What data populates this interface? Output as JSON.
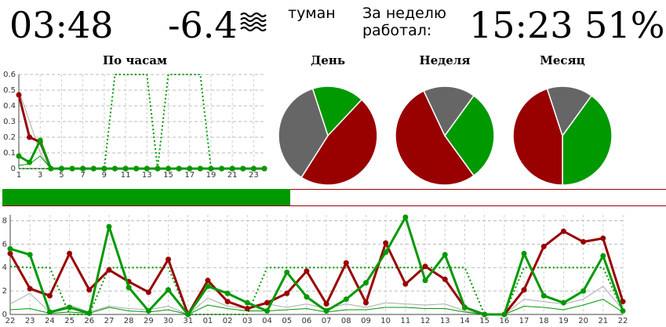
{
  "header": {
    "time": "03:48",
    "temperature": "-6.4",
    "weather_icon": "fog-icon",
    "weather_text": "туман",
    "week_label_line1": "За неделю",
    "week_label_line2": "работал:",
    "worked_value": "15:23 51%"
  },
  "progress": {
    "fraction": 0.51
  },
  "colors": {
    "red": "#990000",
    "green": "#009900",
    "gray": "#666666",
    "thin_gray": "#aaaaaa"
  },
  "chart_data": [
    {
      "type": "line",
      "title": "По часам",
      "x": [
        0,
        1,
        2,
        3,
        4,
        5,
        6,
        7,
        8,
        9,
        10,
        11,
        12,
        13,
        14,
        15,
        16,
        17,
        18,
        19,
        20,
        21,
        22,
        23
      ],
      "x_tick_labels": [
        "1",
        "3",
        "5",
        "7",
        "9",
        "11",
        "13",
        "15",
        "17",
        "19",
        "21",
        "23"
      ],
      "ylim": [
        0,
        0.6
      ],
      "y_ticks": [
        "0",
        "0.1",
        "0.2",
        "0.3",
        "0.4",
        "0.5",
        "0.6"
      ],
      "series": [
        {
          "style": "red-bold",
          "values": [
            0.47,
            0.2,
            0.17,
            0,
            0,
            0,
            0,
            0,
            0,
            0,
            0,
            0,
            0,
            0,
            0,
            0,
            0,
            0,
            0,
            0,
            0,
            0,
            0,
            0
          ]
        },
        {
          "style": "green-bold",
          "values": [
            0.08,
            0.04,
            0.18,
            0,
            0,
            0,
            0,
            0,
            0,
            0,
            0,
            0,
            0,
            0,
            0,
            0,
            0,
            0,
            0,
            0,
            0,
            0,
            0,
            0
          ]
        },
        {
          "style": "gray-thin",
          "values": [
            0.5,
            0.3,
            0.1,
            0,
            0,
            0,
            0,
            0,
            0,
            0,
            0,
            0,
            0,
            0,
            0,
            0,
            0,
            0,
            0,
            0,
            0,
            0,
            0,
            0
          ]
        },
        {
          "style": "green-thin",
          "values": [
            0.02,
            0.03,
            0.08,
            0,
            0,
            0,
            0,
            0,
            0,
            0,
            0,
            0,
            0,
            0,
            0,
            0,
            0,
            0,
            0,
            0,
            0,
            0,
            0,
            0
          ]
        },
        {
          "style": "green-dotted",
          "values": [
            0,
            0,
            0,
            0,
            0,
            0,
            0,
            0,
            0,
            0.6,
            0.6,
            0.6,
            0.6,
            0,
            0.6,
            0.6,
            0.6,
            0.6,
            0,
            0,
            0,
            0,
            0,
            0
          ]
        }
      ],
      "grid": true
    },
    {
      "type": "pie",
      "title": "День",
      "slices": [
        {
          "color": "green",
          "value": 0.17
        },
        {
          "color": "red",
          "value": 0.47
        },
        {
          "color": "gray",
          "value": 0.36
        }
      ]
    },
    {
      "type": "pie",
      "title": "Неделя",
      "slices": [
        {
          "color": "green",
          "value": 0.3
        },
        {
          "color": "red",
          "value": 0.53
        },
        {
          "color": "gray",
          "value": 0.17
        }
      ]
    },
    {
      "type": "pie",
      "title": "Месяц",
      "slices": [
        {
          "color": "green",
          "value": 0.4
        },
        {
          "color": "red",
          "value": 0.45
        },
        {
          "color": "gray",
          "value": 0.15
        }
      ]
    },
    {
      "type": "line",
      "title": "",
      "x_labels": [
        "22",
        "23",
        "24",
        "25",
        "26",
        "27",
        "28",
        "29",
        "30",
        "31",
        "01",
        "02",
        "03",
        "04",
        "05",
        "06",
        "07",
        "08",
        "09",
        "10",
        "11",
        "12",
        "13",
        "14",
        "15",
        "16",
        "17",
        "18",
        "19",
        "20",
        "21",
        "22"
      ],
      "ylim": [
        0,
        8.5
      ],
      "y_ticks": [
        "0",
        "2",
        "4",
        "6",
        "8"
      ],
      "grid": true,
      "series": [
        {
          "style": "red-bold",
          "values": [
            5.2,
            2.2,
            1.6,
            5.2,
            2.1,
            3.8,
            2.8,
            1.9,
            4.7,
            0,
            2.9,
            1.1,
            0.5,
            1.0,
            1.8,
            3.7,
            0.9,
            4.4,
            1.0,
            6.1,
            2.6,
            4.1,
            3.0,
            0.6,
            0,
            0,
            2.1,
            5.8,
            7.1,
            6.2,
            6.5,
            1.1
          ]
        },
        {
          "style": "green-bold",
          "values": [
            5.6,
            5.1,
            0.2,
            0.6,
            0.1,
            7.5,
            2.3,
            0.3,
            2.1,
            0,
            2.4,
            1.8,
            1.0,
            0.3,
            3.6,
            1.5,
            0.3,
            1.3,
            2.7,
            5.3,
            8.3,
            2.9,
            5.1,
            0.6,
            0,
            0,
            5.2,
            1.6,
            1.0,
            2.0,
            5.0,
            0.3
          ]
        },
        {
          "style": "green-dotted",
          "values": [
            4.1,
            4.0,
            4.0,
            0,
            0,
            4.0,
            4.0,
            4.0,
            4.0,
            0,
            0,
            0,
            0,
            4.0,
            4.0,
            4.0,
            4.0,
            4.0,
            4.0,
            4.0,
            4.0,
            4.0,
            4.0,
            4.0,
            0,
            0,
            4.0,
            4.0,
            4.0,
            4.0,
            4.0,
            0.3
          ]
        },
        {
          "style": "gray-thin",
          "values": [
            0.9,
            1.8,
            0.2,
            0.8,
            0.2,
            0.7,
            0.5,
            0.4,
            0.7,
            0,
            1.4,
            0.7,
            0.5,
            0.9,
            0.6,
            0.9,
            0.5,
            0.9,
            0.6,
            1.0,
            0.9,
            0.8,
            0.9,
            0.3,
            0,
            0,
            1.3,
            1.1,
            0.9,
            1.3,
            2.4,
            0.4
          ]
        },
        {
          "style": "green-thin",
          "values": [
            0.4,
            0.5,
            0.1,
            0.2,
            0.1,
            0.6,
            0.3,
            0.2,
            0.4,
            0,
            0.8,
            0.5,
            0.3,
            0.3,
            0.4,
            0.5,
            0.2,
            0.4,
            0.4,
            0.6,
            0.6,
            0.5,
            0.5,
            0.2,
            0,
            0,
            0.7,
            0.6,
            0.4,
            0.8,
            1.3,
            0.2
          ]
        }
      ]
    }
  ]
}
